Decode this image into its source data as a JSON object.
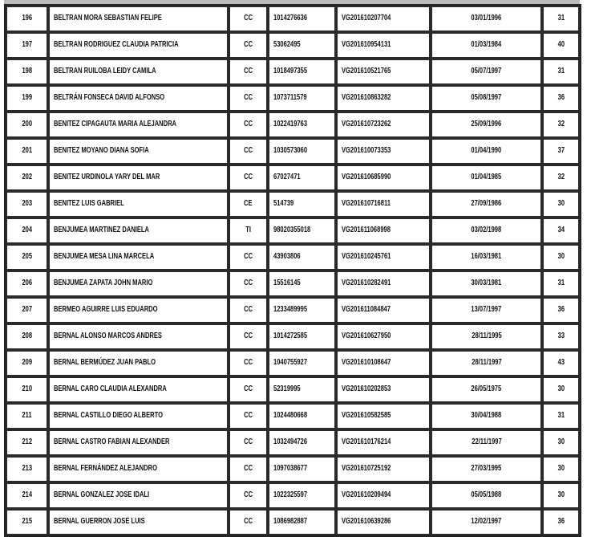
{
  "rows": [
    [
      "196",
      "BELTRAN MORA SEBASTIAN FELIPE",
      "CC",
      "1014276636",
      "VG201610207704",
      "03/01/1996",
      "31"
    ],
    [
      "197",
      "BELTRAN RODRIGUEZ CLAUDIA PATRICIA",
      "CC",
      "53062495",
      "VG201610954131",
      "01/03/1984",
      "40"
    ],
    [
      "198",
      "BELTRAN RUILOBA LEIDY CAMILA",
      "CC",
      "1018497355",
      "VG201610521765",
      "05/07/1997",
      "31"
    ],
    [
      "199",
      "BELTRÁN FONSECA DAVID ALFONSO",
      "CC",
      "1073711579",
      "VG201610863282",
      "05/08/1997",
      "36"
    ],
    [
      "200",
      "BENITEZ CIPAGAUTA MARIA ALEJANDRA",
      "CC",
      "1022419763",
      "VG201610723262",
      "25/09/1996",
      "32"
    ],
    [
      "201",
      "BENITEZ MOYANO DIANA SOFIA",
      "CC",
      "1030573060",
      "VG201610073353",
      "01/04/1990",
      "37"
    ],
    [
      "202",
      "BENITEZ URDINOLA YARY DEL MAR",
      "CC",
      "67027471",
      "VG201610685990",
      "01/04/1985",
      "32"
    ],
    [
      "203",
      "BENITEZ  LUIS GABRIEL",
      "CE",
      "514739",
      "VG201610716811",
      "27/09/1986",
      "30"
    ],
    [
      "204",
      "BENJUMEA MARTINEZ DANIELA",
      "TI",
      "98020355018",
      "VG201611068998",
      "03/02/1998",
      "34"
    ],
    [
      "205",
      "BENJUMEA MESA LINA MARCELA",
      "CC",
      "43903806",
      "VG201610245761",
      "16/03/1981",
      "30"
    ],
    [
      "206",
      "BENJUMEA ZAPATA JOHN MARIO",
      "CC",
      "15516145",
      "VG201610282491",
      "30/03/1981",
      "31"
    ],
    [
      "207",
      "BERMEO AGUIRRE LUIS EDUARDO",
      "CC",
      "1233489995",
      "VG201611084847",
      "13/07/1997",
      "36"
    ],
    [
      "208",
      "BERNAL ALONSO MARCOS ANDRES",
      "CC",
      "1014272585",
      "VG201610627950",
      "28/11/1995",
      "33"
    ],
    [
      "209",
      "BERNAL BERMÚDEZ JUAN PABLO",
      "CC",
      "1040755927",
      "VG201610108647",
      "28/11/1997",
      "43"
    ],
    [
      "210",
      "BERNAL CARO CLAUDIA ALEXANDRA",
      "CC",
      "52319995",
      "VG201610202853",
      "26/05/1975",
      "30"
    ],
    [
      "211",
      "BERNAL CASTILLO DIEGO ALBERTO",
      "CC",
      "1024480668",
      "VG201610582585",
      "30/04/1988",
      "31"
    ],
    [
      "212",
      "BERNAL CASTRO FABIAN ALEXANDER",
      "CC",
      "1032494726",
      "VG201610176214",
      "22/11/1997",
      "30"
    ],
    [
      "213",
      "BERNAL FERNÁNDEZ ALEJANDRO",
      "CC",
      "1097038677",
      "VG201610725192",
      "27/03/1995",
      "30"
    ],
    [
      "214",
      "BERNAL GONZALEZ JOSE IDALI",
      "CC",
      "1022325597",
      "VG201610209494",
      "05/05/1988",
      "30"
    ],
    [
      "215",
      "BERNAL GUERRON JOSE LUIS",
      "CC",
      "1086982887",
      "VG201610639286",
      "12/02/1997",
      "36"
    ]
  ]
}
